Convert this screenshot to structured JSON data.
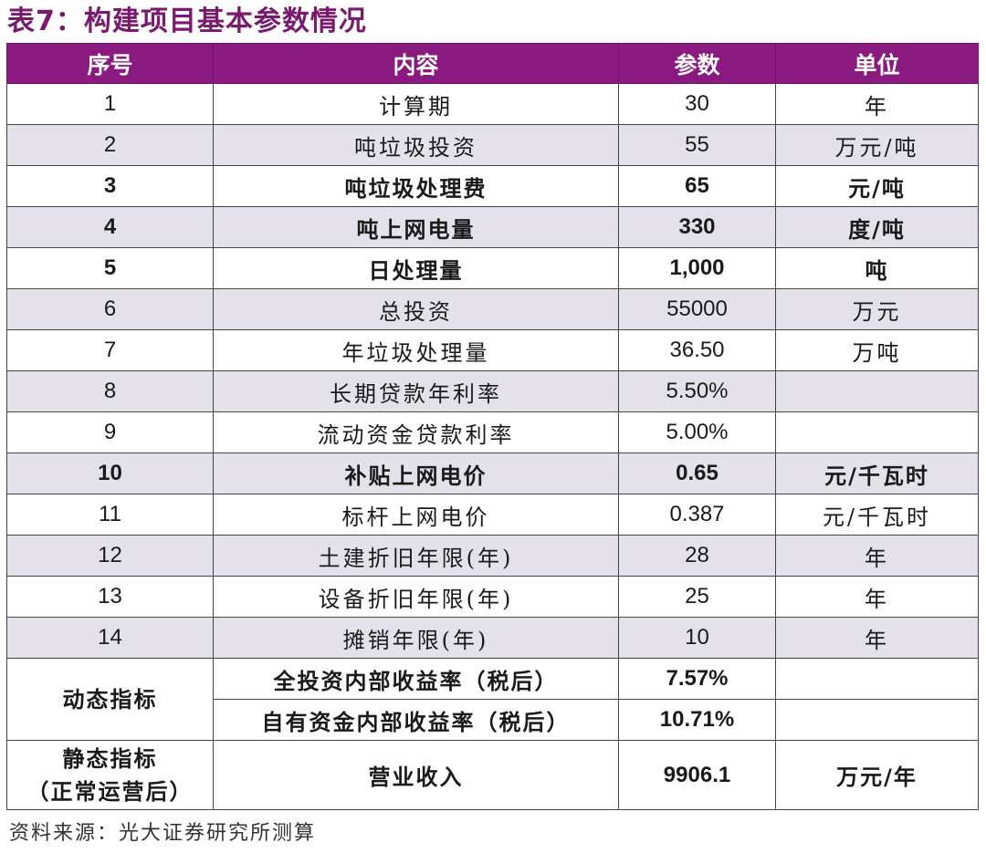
{
  "title": "表7：构建项目基本参数情况",
  "headers": {
    "seq": "序号",
    "content": "内容",
    "param": "参数",
    "unit": "单位"
  },
  "rows": [
    {
      "seq": "1",
      "content": "计算期",
      "param": "30",
      "unit": "年"
    },
    {
      "seq": "2",
      "content": "吨垃圾投资",
      "param": "55",
      "unit": "万元/吨"
    },
    {
      "seq": "3",
      "content": "吨垃圾处理费",
      "param": "65",
      "unit": "元/吨"
    },
    {
      "seq": "4",
      "content": "吨上网电量",
      "param": "330",
      "unit": "度/吨"
    },
    {
      "seq": "5",
      "content": "日处理量",
      "param": "1,000",
      "unit": "吨"
    },
    {
      "seq": "6",
      "content": "总投资",
      "param": "55000",
      "unit": "万元"
    },
    {
      "seq": "7",
      "content": "年垃圾处理量",
      "param": "36.50",
      "unit": "万吨"
    },
    {
      "seq": "8",
      "content": "长期贷款年利率",
      "param": "5.50%",
      "unit": ""
    },
    {
      "seq": "9",
      "content": "流动资金贷款利率",
      "param": "5.00%",
      "unit": ""
    },
    {
      "seq": "10",
      "content": "补贴上网电价",
      "param": "0.65",
      "unit": "元/千瓦时"
    },
    {
      "seq": "11",
      "content": "标杆上网电价",
      "param": "0.387",
      "unit": "元/千瓦时"
    },
    {
      "seq": "12",
      "content": "土建折旧年限(年)",
      "param": "28",
      "unit": "年"
    },
    {
      "seq": "13",
      "content": "设备折旧年限(年)",
      "param": "25",
      "unit": "年"
    },
    {
      "seq": "14",
      "content": "摊销年限(年)",
      "param": "10",
      "unit": "年"
    }
  ],
  "dynamic": {
    "label": "动态指标",
    "items": [
      {
        "content": "全投资内部收益率（税后）",
        "param": "7.57%",
        "unit": ""
      },
      {
        "content": "自有资金内部收益率（税后）",
        "param": "10.71%",
        "unit": ""
      }
    ]
  },
  "static": {
    "label_line1": "静态指标",
    "label_line2": "（正常运营后）",
    "content": "营业收入",
    "param": "9906.1",
    "unit": "万元/年"
  },
  "source": "资料来源：光大证券研究所测算"
}
